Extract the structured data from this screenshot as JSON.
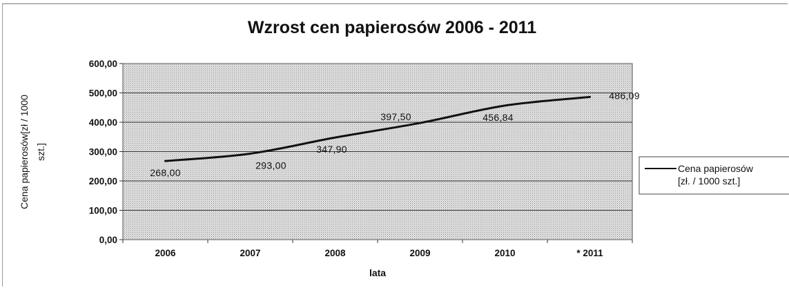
{
  "chart_data": {
    "type": "line",
    "title": "Wzrost cen papierosów 2006 - 2011",
    "xlabel": "lata",
    "ylabel_lines": [
      "Cena papierosów[zł / 1000",
      "szt.]"
    ],
    "categories": [
      "2006",
      "2007",
      "2008",
      "2009",
      "2010",
      "* 2011"
    ],
    "ylim": [
      0,
      600
    ],
    "yticks": [
      "0,00",
      "100,00",
      "200,00",
      "300,00",
      "400,00",
      "500,00",
      "600,00"
    ],
    "grid": true,
    "legend_position": "right",
    "series": [
      {
        "name_lines": [
          "Cena papierosów",
          "[zł. / 1000 szt.]"
        ],
        "values": [
          268.0,
          293.0,
          347.9,
          397.5,
          456.84,
          486.09
        ],
        "labels": [
          "268,00",
          "293,00",
          "347,90",
          "397,50",
          "456,84",
          "486,09"
        ],
        "color": "#111111"
      }
    ],
    "plot_background": "#d6d6d6"
  }
}
